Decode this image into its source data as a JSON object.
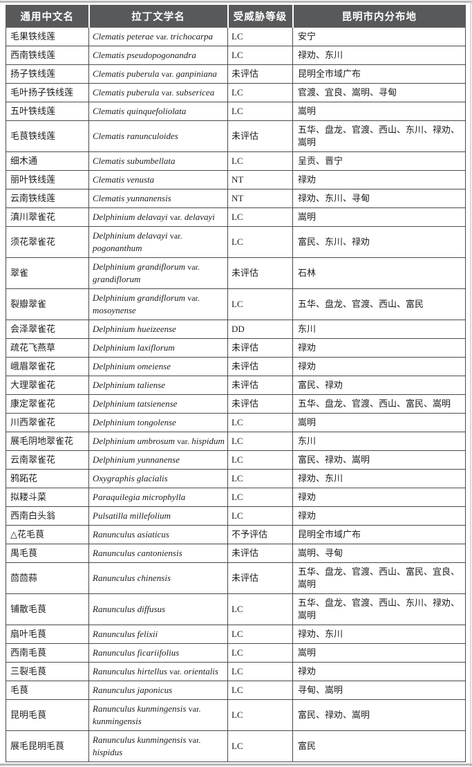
{
  "document": {
    "type": "species-distribution-table",
    "language": "zh-CN"
  },
  "colors": {
    "header_background": "#58595b",
    "header_text": "#ffffff",
    "cell_border": "#4a4a4a",
    "frame_rule": "#b7b7b7",
    "body_text": "#1d1d1d"
  },
  "table": {
    "headers": [
      {
        "key": "common_name",
        "label": "通用中文名"
      },
      {
        "key": "latin_name",
        "label": "拉丁文学名"
      },
      {
        "key": "threat_level",
        "label": "受威胁等级"
      },
      {
        "key": "distribution",
        "label": "昆明市内分布地"
      }
    ],
    "rows": [
      {
        "common_name": "毛果铁线莲",
        "latin_name": "Clematis peterae var. trichocarpa",
        "threat_level": "LC",
        "distribution": "安宁"
      },
      {
        "common_name": "西南铁线莲",
        "latin_name": "Clematis pseudopogonandra",
        "threat_level": "LC",
        "distribution": "禄劝、东川"
      },
      {
        "common_name": "扬子铁线莲",
        "latin_name": "Clematis puberula var. ganpiniana",
        "threat_level": "未评估",
        "distribution": "昆明全市域广布"
      },
      {
        "common_name": "毛叶扬子铁线莲",
        "latin_name": "Clematis puberula var. subsericea",
        "threat_level": "LC",
        "distribution": "官渡、宜良、嵩明、寻甸"
      },
      {
        "common_name": "五叶铁线莲",
        "latin_name": "Clematis quinquefoliolata",
        "threat_level": "LC",
        "distribution": "嵩明"
      },
      {
        "common_name": "毛茛铁线莲",
        "latin_name": "Clematis ranunculoides",
        "threat_level": "未评估",
        "distribution": "五华、盘龙、官渡、西山、东川、禄劝、嵩明"
      },
      {
        "common_name": "细木通",
        "latin_name": "Clematis subumbellata",
        "threat_level": "LC",
        "distribution": "呈贡、晋宁"
      },
      {
        "common_name": "丽叶铁线莲",
        "latin_name": "Clematis venusta",
        "threat_level": "NT",
        "distribution": "禄劝"
      },
      {
        "common_name": "云南铁线莲",
        "latin_name": "Clematis yunnanensis",
        "threat_level": "NT",
        "distribution": "禄劝、东川、寻甸"
      },
      {
        "common_name": "滇川翠雀花",
        "latin_name": "Delphinium delavayi var. delavayi",
        "threat_level": "LC",
        "distribution": "嵩明"
      },
      {
        "common_name": "须花翠雀花",
        "latin_name": "Delphinium delavayi var. pogonanthum",
        "threat_level": "LC",
        "distribution": "富民、东川、禄劝"
      },
      {
        "common_name": "翠雀",
        "latin_name": "Delphinium grandiflorum var. grandiflorum",
        "threat_level": "未评估",
        "distribution": "石林"
      },
      {
        "common_name": "裂瓣翠雀",
        "latin_name": "Delphinium grandiflorum var. mosoynense",
        "threat_level": "LC",
        "distribution": "五华、盘龙、官渡、西山、富民"
      },
      {
        "common_name": "会泽翠雀花",
        "latin_name": "Delphinium hueizeense",
        "threat_level": "DD",
        "distribution": "东川"
      },
      {
        "common_name": "疏花飞燕草",
        "latin_name": "Delphinium laxiflorum",
        "threat_level": "未评估",
        "distribution": "禄劝"
      },
      {
        "common_name": "峨眉翠雀花",
        "latin_name": "Delphinium omeiense",
        "threat_level": "未评估",
        "distribution": "禄劝"
      },
      {
        "common_name": "大理翠雀花",
        "latin_name": "Delphinium taliense",
        "threat_level": "未评估",
        "distribution": "富民、禄劝"
      },
      {
        "common_name": "康定翠雀花",
        "latin_name": "Delphinium tatsienense",
        "threat_level": "未评估",
        "distribution": "五华、盘龙、官渡、西山、富民、嵩明"
      },
      {
        "common_name": "川西翠雀花",
        "latin_name": "Delphinium tongolense",
        "threat_level": "LC",
        "distribution": "嵩明"
      },
      {
        "common_name": "展毛阴地翠雀花",
        "latin_name": "Delphinium umbrosum var. hispidum",
        "threat_level": "LC",
        "distribution": "东川"
      },
      {
        "common_name": "云南翠雀花",
        "latin_name": "Delphinium yunnanense",
        "threat_level": "LC",
        "distribution": "富民、禄劝、嵩明"
      },
      {
        "common_name": "鸦跖花",
        "latin_name": "Oxygraphis glacialis",
        "threat_level": "LC",
        "distribution": "禄劝、东川"
      },
      {
        "common_name": "拟耧斗菜",
        "latin_name": "Paraquilegia microphylla",
        "threat_level": "LC",
        "distribution": "禄劝"
      },
      {
        "common_name": "西南白头翁",
        "latin_name": "Pulsatilla millefolium",
        "threat_level": "LC",
        "distribution": "禄劝"
      },
      {
        "common_name": "△花毛茛",
        "latin_name": "Ranunculus asiaticus",
        "threat_level": "不予评估",
        "distribution": "昆明全市域广布"
      },
      {
        "common_name": "禺毛茛",
        "latin_name": "Ranunculus cantoniensis",
        "threat_level": "未评估",
        "distribution": "嵩明、寻甸"
      },
      {
        "common_name": "茴茴蒜",
        "latin_name": "Ranunculus chinensis",
        "threat_level": "未评估",
        "distribution": "五华、盘龙、官渡、西山、富民、宜良、嵩明"
      },
      {
        "common_name": "铺散毛茛",
        "latin_name": "Ranunculus diffusus",
        "threat_level": "LC",
        "distribution": "五华、盘龙、官渡、西山、东川、禄劝、嵩明"
      },
      {
        "common_name": "扇叶毛茛",
        "latin_name": "Ranunculus felixii",
        "threat_level": "LC",
        "distribution": "禄劝、东川"
      },
      {
        "common_name": "西南毛茛",
        "latin_name": "Ranunculus ficariifolius",
        "threat_level": "LC",
        "distribution": "嵩明"
      },
      {
        "common_name": "三裂毛茛",
        "latin_name": "Ranunculus hirtellus var. orientalis",
        "threat_level": "LC",
        "distribution": "禄劝"
      },
      {
        "common_name": "毛茛",
        "latin_name": "Ranunculus japonicus",
        "threat_level": "LC",
        "distribution": "寻甸、嵩明"
      },
      {
        "common_name": "昆明毛茛",
        "latin_name": "Ranunculus kunmingensis var. kunmingensis",
        "threat_level": "LC",
        "distribution": "富民、禄劝、嵩明"
      },
      {
        "common_name": "展毛昆明毛茛",
        "latin_name": "Ranunculus kunmingensis var. hispidus",
        "threat_level": "LC",
        "distribution": "富民"
      }
    ]
  }
}
